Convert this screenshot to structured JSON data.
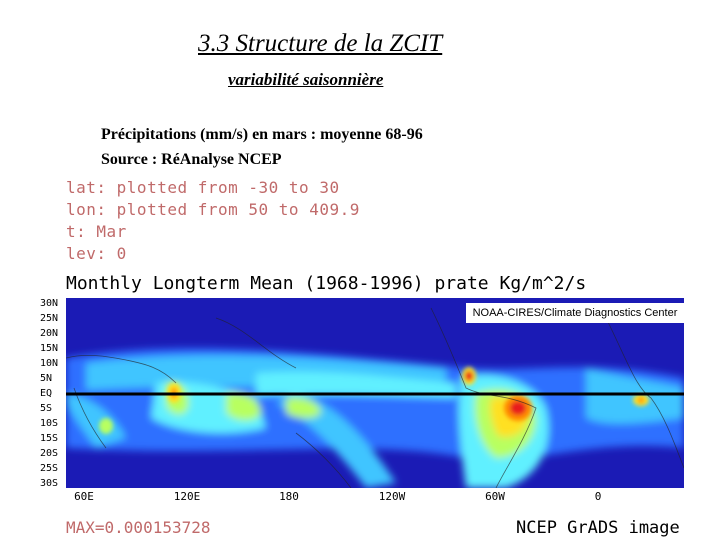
{
  "slide": {
    "title": "3.3 Structure de la ZCIT",
    "subtitle": " variabilité saisonnière",
    "caption_line1": "Précipitations (mm/s) en mars : moyenne 68-96",
    "caption_line2": "Source :  RéAnalyse NCEP"
  },
  "grads": {
    "lat": "lat: plotted from -30 to 30",
    "lon": "lon: plotted from 50 to 409.9",
    "t": "t: Mar",
    "lev": "lev: 0",
    "plot_title": "Monthly Longterm Mean (1968-1996) prate Kg/m^2/s",
    "credit": "NOAA-CIRES/Climate Diagnostics Center",
    "max_label": "MAX=0.000153728",
    "brand": "NCEP GrADS image"
  },
  "axes": {
    "lat_labels": [
      "30N",
      "25N",
      "20N",
      "15N",
      "10N",
      "5N",
      "EQ",
      "5S",
      "10S",
      "15S",
      "20S",
      "25S",
      "30S"
    ],
    "lon_labels": [
      "60E",
      "120E",
      "180",
      "120W",
      "60W",
      "0"
    ]
  },
  "colors": {
    "deep_blue": "#1b1bb5",
    "blue": "#2f6fff",
    "light_blue": "#3fc5ff",
    "cyan": "#60f0ff",
    "green": "#b8ff60",
    "yellow": "#ffe020",
    "orange": "#ff8c00",
    "red": "#e81a1a"
  }
}
